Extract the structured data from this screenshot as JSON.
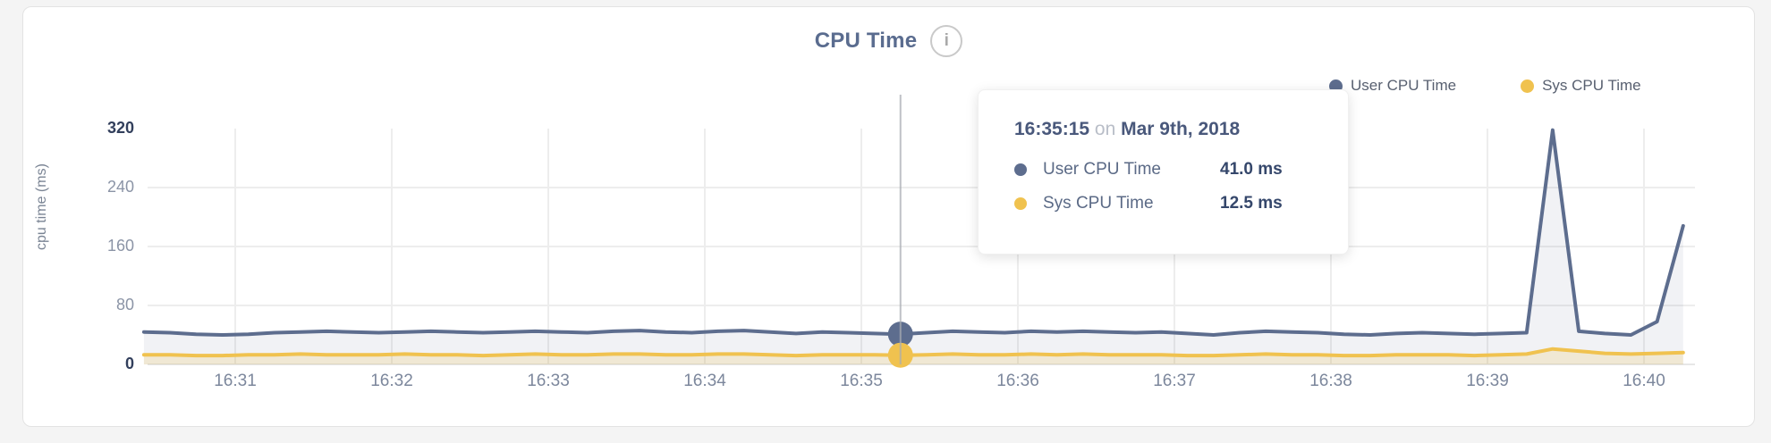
{
  "card": {
    "title": "CPU Time",
    "info_icon": "i"
  },
  "tooltip": {
    "time": "16:35:15",
    "conjunction": "on",
    "date": "Mar 9th, 2018",
    "rows": [
      {
        "label": "User CPU Time",
        "value": "41.0 ms"
      },
      {
        "label": "Sys CPU Time",
        "value": "12.5 ms"
      }
    ]
  },
  "chart_data": {
    "type": "area",
    "title": "CPU Time",
    "ylabel": "cpu time (ms)",
    "ylim": [
      0,
      320
    ],
    "y_ticks": [
      0,
      80,
      160,
      240,
      320
    ],
    "x_tick_labels": [
      "16:31",
      "16:32",
      "16:33",
      "16:34",
      "16:35",
      "16:36",
      "16:37",
      "16:38",
      "16:39",
      "16:40"
    ],
    "grid": true,
    "legend_position": "top-right",
    "hover_index": 29,
    "x_times": [
      "16:30:25",
      "16:30:35",
      "16:30:45",
      "16:30:55",
      "16:31:05",
      "16:31:15",
      "16:31:25",
      "16:31:35",
      "16:31:45",
      "16:31:55",
      "16:32:05",
      "16:32:15",
      "16:32:25",
      "16:32:35",
      "16:32:45",
      "16:32:55",
      "16:33:05",
      "16:33:15",
      "16:33:25",
      "16:33:35",
      "16:33:45",
      "16:33:55",
      "16:34:05",
      "16:34:15",
      "16:34:25",
      "16:34:35",
      "16:34:45",
      "16:34:55",
      "16:35:05",
      "16:35:15",
      "16:35:25",
      "16:35:35",
      "16:35:45",
      "16:35:55",
      "16:36:05",
      "16:36:15",
      "16:36:25",
      "16:36:35",
      "16:36:45",
      "16:36:55",
      "16:37:05",
      "16:37:15",
      "16:37:25",
      "16:37:35",
      "16:37:45",
      "16:37:55",
      "16:38:05",
      "16:38:15",
      "16:38:25",
      "16:38:35",
      "16:38:45",
      "16:38:55",
      "16:39:05",
      "16:39:15",
      "16:39:25",
      "16:39:35",
      "16:39:45",
      "16:39:55",
      "16:40:05",
      "16:40:15"
    ],
    "series": [
      {
        "name": "User CPU Time",
        "color": "#5d6d8e",
        "fill": "rgba(96,110,140,0.09)",
        "values": [
          44,
          43,
          41,
          40,
          41,
          43,
          44,
          45,
          44,
          43,
          44,
          45,
          44,
          43,
          44,
          45,
          44,
          43,
          45,
          46,
          44,
          43,
          45,
          46,
          44,
          42,
          44,
          43,
          42,
          41,
          43,
          45,
          44,
          43,
          45,
          44,
          45,
          44,
          43,
          44,
          42,
          40,
          43,
          45,
          44,
          43,
          41,
          40,
          42,
          43,
          42,
          41,
          42,
          43,
          318,
          45,
          42,
          40,
          58,
          188
        ]
      },
      {
        "name": "Sys CPU Time",
        "color": "#f0c24f",
        "fill": "rgba(239,194,79,0.20)",
        "values": [
          13,
          13,
          12,
          12,
          13,
          13,
          14,
          13,
          13,
          13,
          14,
          13,
          13,
          12,
          13,
          14,
          13,
          13,
          14,
          14,
          13,
          13,
          14,
          14,
          13,
          12,
          13,
          13,
          13,
          12.5,
          13,
          14,
          13,
          13,
          14,
          13,
          14,
          13,
          13,
          13,
          12,
          12,
          13,
          14,
          13,
          13,
          12,
          12,
          13,
          13,
          13,
          12,
          13,
          14,
          21,
          18,
          15,
          14,
          15,
          16
        ]
      }
    ]
  }
}
